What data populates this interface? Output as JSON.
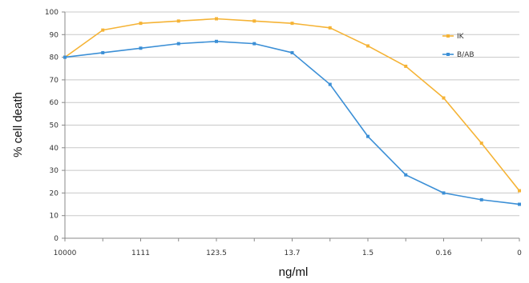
{
  "chart_data": {
    "type": "line",
    "title": "",
    "xlabel": "ng/ml",
    "ylabel": "% cell death",
    "ylim": [
      0,
      100
    ],
    "yticks": [
      0,
      10,
      20,
      30,
      40,
      50,
      60,
      70,
      80,
      90,
      100
    ],
    "grid": true,
    "legend_position": "right",
    "x_tick_labels": [
      "10000",
      "",
      "1111",
      "",
      "123.5",
      "",
      "13.7",
      "",
      "1.5",
      "",
      "0.16",
      "",
      "0"
    ],
    "series": [
      {
        "name": "IK",
        "color": "#f5b335",
        "values": [
          80,
          92,
          95,
          96,
          97,
          96,
          95,
          93,
          85,
          76,
          62,
          42,
          21
        ]
      },
      {
        "name": "B/AB",
        "color": "#3b8fd6",
        "values": [
          80,
          82,
          84,
          86,
          87,
          86,
          82,
          68,
          45,
          28,
          20,
          17,
          15
        ]
      }
    ]
  }
}
